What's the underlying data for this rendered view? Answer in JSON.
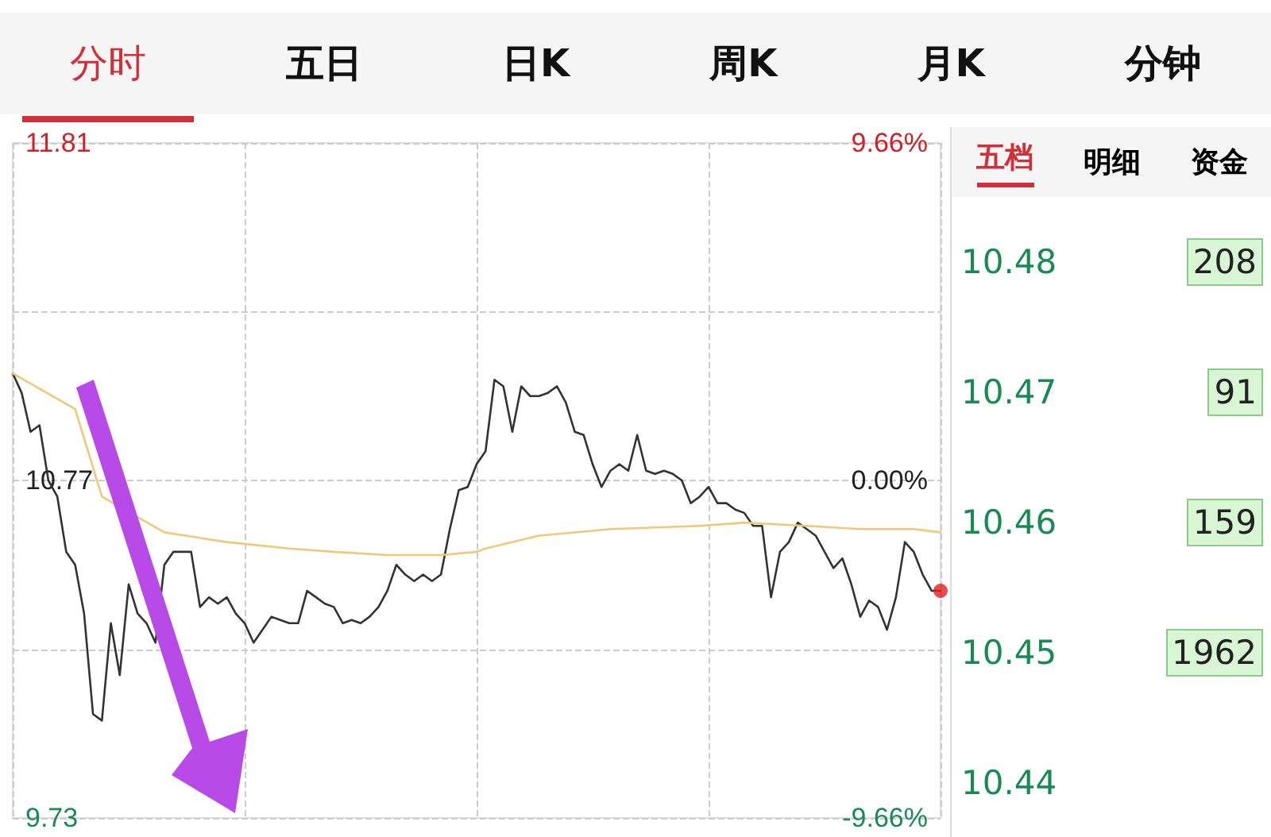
{
  "chart_data": {
    "type": "line",
    "annotations": [
      "分时",
      "五日",
      "日K",
      "周K",
      "月K",
      "分钟",
      "五档",
      "明细",
      "资金",
      "10.48",
      "208",
      "10.47",
      "91",
      "10.46",
      "159",
      "10.45",
      "1962",
      "10.44"
    ],
    "categories": [
      null,
      null,
      null,
      null,
      null,
      null,
      null,
      null,
      null,
      null,
      null,
      null,
      null,
      null,
      null,
      null,
      null,
      null,
      null,
      null,
      null,
      null,
      null,
      null,
      null,
      null,
      null,
      null,
      null,
      null,
      null,
      null,
      null,
      null,
      null,
      null,
      null,
      null,
      null,
      null,
      null,
      null,
      null,
      null,
      null,
      null,
      null,
      null,
      null,
      null,
      null,
      null,
      null,
      null,
      null,
      null,
      null,
      null,
      null,
      null,
      null,
      null,
      null,
      null,
      null,
      null,
      null,
      null,
      null,
      null,
      null,
      null,
      null,
      null,
      null,
      null,
      null,
      null,
      null,
      null,
      null,
      null,
      null,
      null,
      null,
      null,
      null,
      null,
      null,
      null,
      null,
      null,
      null,
      null,
      null,
      null,
      null,
      null,
      null,
      null,
      null,
      null,
      null,
      null,
      null
    ],
    "series": [
      {
        "color": "#333333",
        "values": [
          11.1,
          11.04,
          10.92,
          10.94,
          10.77,
          10.72,
          10.55,
          10.51,
          10.36,
          10.05,
          10.03,
          10.33,
          10.17,
          10.45,
          10.36,
          10.33,
          10.27,
          10.51,
          10.55,
          10.55,
          10.55,
          10.38,
          10.41,
          10.39,
          10.41,
          10.36,
          10.33,
          10.27,
          10.31,
          10.35,
          10.34,
          10.33,
          10.33,
          10.43,
          10.41,
          10.39,
          10.38,
          10.33,
          10.34,
          10.33,
          10.35,
          10.38,
          10.43,
          10.51,
          10.48,
          10.46,
          10.48,
          10.46,
          10.48,
          10.62,
          10.74,
          10.75,
          10.82,
          10.86,
          11.08,
          11.06,
          10.92,
          11.06,
          11.03,
          11.03,
          11.04,
          11.06,
          11.01,
          10.92,
          10.91,
          10.82,
          10.75,
          10.8,
          10.82,
          10.8,
          10.91,
          10.8,
          10.79,
          10.8,
          10.79,
          10.77,
          10.7,
          10.72,
          10.75,
          10.7,
          10.7,
          10.68,
          10.67,
          10.63,
          10.63,
          10.41,
          10.55,
          10.58,
          10.64,
          10.62,
          10.6,
          10.55,
          10.5,
          10.53,
          10.45,
          10.35,
          10.4,
          10.38,
          10.31,
          10.41,
          10.58,
          10.55,
          10.48,
          10.43,
          10.43
        ]
      },
      {
        "color": "#f0c878",
        "values": [
          11.1,
          null,
          null,
          null,
          null,
          null,
          null,
          10.99,
          null,
          null,
          10.72,
          null,
          null,
          null,
          null,
          null,
          null,
          10.61,
          null,
          null,
          null,
          null,
          null,
          null,
          10.58,
          null,
          null,
          null,
          null,
          null,
          null,
          10.56,
          null,
          null,
          null,
          null,
          10.55,
          null,
          null,
          null,
          null,
          null,
          10.54,
          null,
          null,
          null,
          null,
          null,
          10.54,
          null,
          null,
          null,
          10.55,
          10.56,
          null,
          null,
          null,
          null,
          null,
          10.6,
          null,
          null,
          null,
          null,
          null,
          null,
          null,
          10.62,
          null,
          null,
          null,
          null,
          null,
          null,
          null,
          null,
          null,
          10.63,
          null,
          null,
          null,
          null,
          10.64,
          null,
          null,
          null,
          null,
          null,
          null,
          10.63,
          null,
          null,
          null,
          null,
          null,
          10.62,
          null,
          null,
          null,
          null,
          null,
          10.62,
          null,
          null,
          10.61
        ]
      },
      {
        "type": "scatter",
        "marker": "circle",
        "color": "#e02020",
        "values": [
          null,
          null,
          null,
          null,
          null,
          null,
          null,
          null,
          null,
          null,
          null,
          null,
          null,
          null,
          null,
          null,
          null,
          null,
          null,
          null,
          null,
          null,
          null,
          null,
          null,
          null,
          null,
          null,
          null,
          null,
          null,
          null,
          null,
          null,
          null,
          null,
          null,
          null,
          null,
          null,
          null,
          null,
          null,
          null,
          null,
          null,
          null,
          null,
          null,
          null,
          null,
          null,
          null,
          null,
          null,
          null,
          null,
          null,
          null,
          null,
          null,
          null,
          null,
          null,
          null,
          null,
          null,
          null,
          null,
          null,
          null,
          null,
          null,
          null,
          null,
          null,
          null,
          null,
          null,
          null,
          null,
          null,
          null,
          null,
          null,
          null,
          null,
          null,
          null,
          null,
          null,
          null,
          null,
          null,
          null,
          null,
          null,
          null,
          null,
          null,
          null,
          null,
          null,
          null,
          10.43
        ]
      }
    ],
    "ylim": [
      9.73,
      11.81
    ],
    "yticks": [
      9.73,
      {
        "value": 10.25,
        "label": null
      },
      10.77,
      {
        "value": 11.29,
        "label": null
      },
      11.81
    ],
    "y2lim": [
      -9.66,
      9.66
    ],
    "y2ticks": [
      {
        "value": -9.66,
        "label": "-9.66%"
      },
      {
        "value": 0,
        "label": "0.00%"
      },
      {
        "value": 9.66,
        "label": "9.66%"
      }
    ],
    "grid": true,
    "marker": "none",
    "line_style": "solid"
  }
}
